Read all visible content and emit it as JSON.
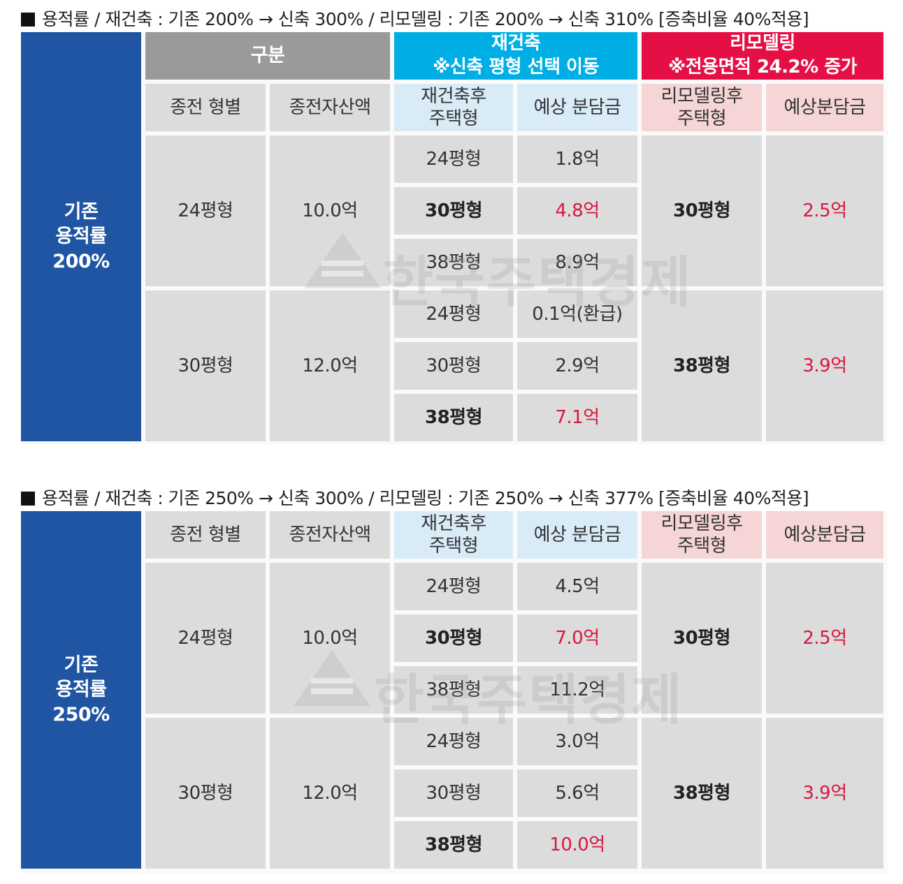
{
  "section1": {
    "caption": "용적률 / 재건축 : 기존 200% → 신축 300% / 리모델링 : 기존 200% → 신축 310% [증축비율 40%적용]",
    "side_label": [
      "기존",
      "용적률",
      "200%"
    ],
    "header_gubun": "구분",
    "header_rebuild": [
      "재건축",
      "※신축 평형 선택 이동"
    ],
    "header_remodel": [
      "리모델링",
      "※전용면적 24.2% 증가"
    ],
    "col_headers": {
      "type": "종전 형별",
      "asset": "종전자산액",
      "rebuild_type": [
        "재건축후",
        "주택형"
      ],
      "rebuild_share": "예상 분담금",
      "remodel_type": [
        "리모델링후",
        "주택형"
      ],
      "remodel_share": "예상분담금"
    },
    "groups": [
      {
        "type": "24평형",
        "asset": "10.0억",
        "rebuild": [
          {
            "type": "24평형",
            "share": "1.8억"
          },
          {
            "type": "30평형",
            "share": "4.8억"
          },
          {
            "type": "38평형",
            "share": "8.9억"
          }
        ],
        "remodel_type": "30평형",
        "remodel_share": "2.5억"
      },
      {
        "type": "30평형",
        "asset": "12.0억",
        "rebuild": [
          {
            "type": "24평형",
            "share": "0.1억(환급)"
          },
          {
            "type": "30평형",
            "share": "2.9억"
          },
          {
            "type": "38평형",
            "share": "7.1억"
          }
        ],
        "remodel_type": "38평형",
        "remodel_share": "3.9억"
      }
    ]
  },
  "section2": {
    "caption": "용적률 / 재건축 : 기존 250% → 신축 300% / 리모델링 : 기존 250% → 신축 377% [증축비율 40%적용]",
    "side_label": [
      "기존",
      "용적률",
      "250%"
    ],
    "col_headers": {
      "type": "종전 형별",
      "asset": "종전자산액",
      "rebuild_type": [
        "재건축후",
        "주택형"
      ],
      "rebuild_share": "예상 분담금",
      "remodel_type": [
        "리모델링후",
        "주택형"
      ],
      "remodel_share": "예상분담금"
    },
    "groups": [
      {
        "type": "24평형",
        "asset": "10.0억",
        "rebuild": [
          {
            "type": "24평형",
            "share": "4.5억"
          },
          {
            "type": "30평형",
            "share": "7.0억"
          },
          {
            "type": "38평형",
            "share": "11.2억"
          }
        ],
        "remodel_type": "30평형",
        "remodel_share": "2.5억"
      },
      {
        "type": "30평형",
        "asset": "12.0억",
        "rebuild": [
          {
            "type": "24평형",
            "share": "3.0억"
          },
          {
            "type": "30평형",
            "share": "5.6억"
          },
          {
            "type": "38평형",
            "share": "10.0억"
          }
        ],
        "remodel_type": "38평형",
        "remodel_share": "3.9억"
      }
    ]
  },
  "watermark": "한국주택경제",
  "colors": {
    "blue": "#1f55a3",
    "cyan": "#00aee6",
    "red_header": "#e60f45",
    "red_text": "#d8173e",
    "gray_header": "#9a9a9a",
    "cell": "#dcdcdc"
  }
}
